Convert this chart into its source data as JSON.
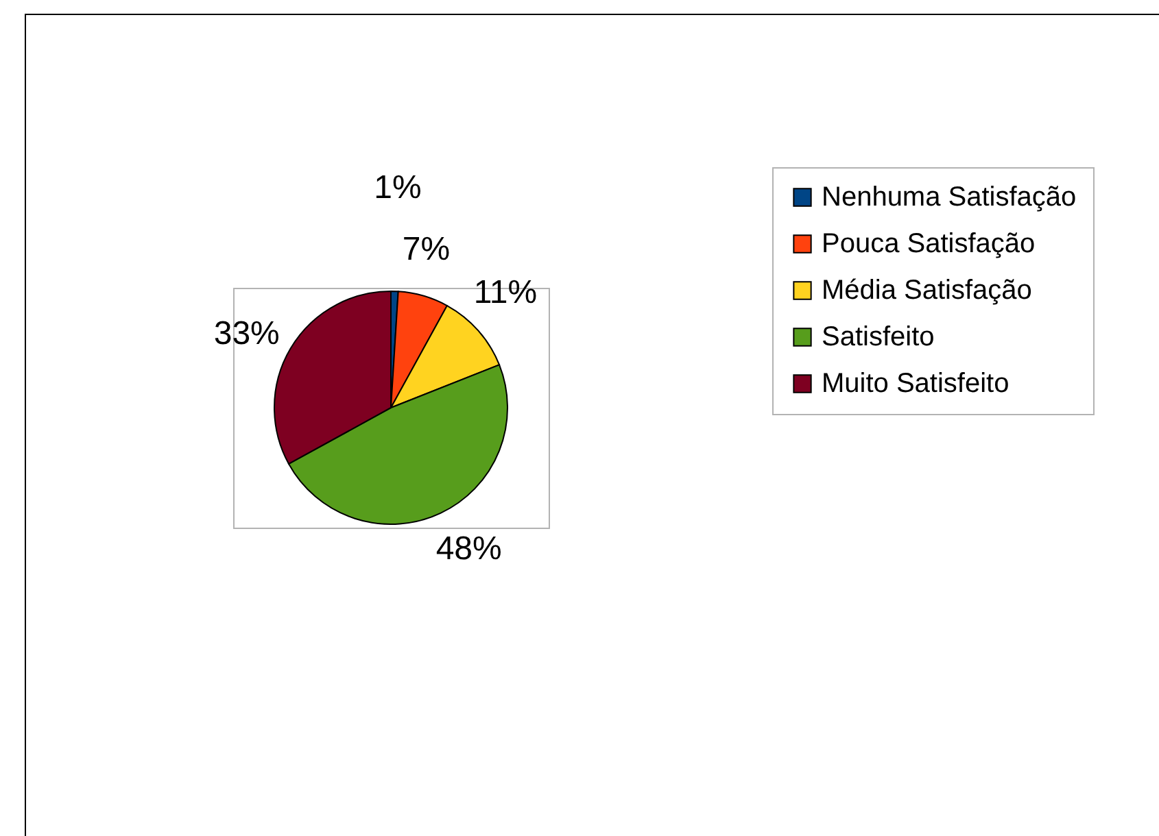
{
  "chart_data": {
    "type": "pie",
    "categories": [
      "Nenhuma Satisfação",
      "Pouca Satisfação",
      "Média Satisfação",
      "Satisfeito",
      "Muito Satisfeito"
    ],
    "values": [
      1,
      7,
      11,
      48,
      33
    ],
    "value_labels": [
      "1%",
      "7%",
      "11%",
      "48%",
      "33%"
    ],
    "colors": [
      "#004586",
      "#ff420e",
      "#ffd320",
      "#579d1c",
      "#7e0021"
    ],
    "legend": "right"
  }
}
